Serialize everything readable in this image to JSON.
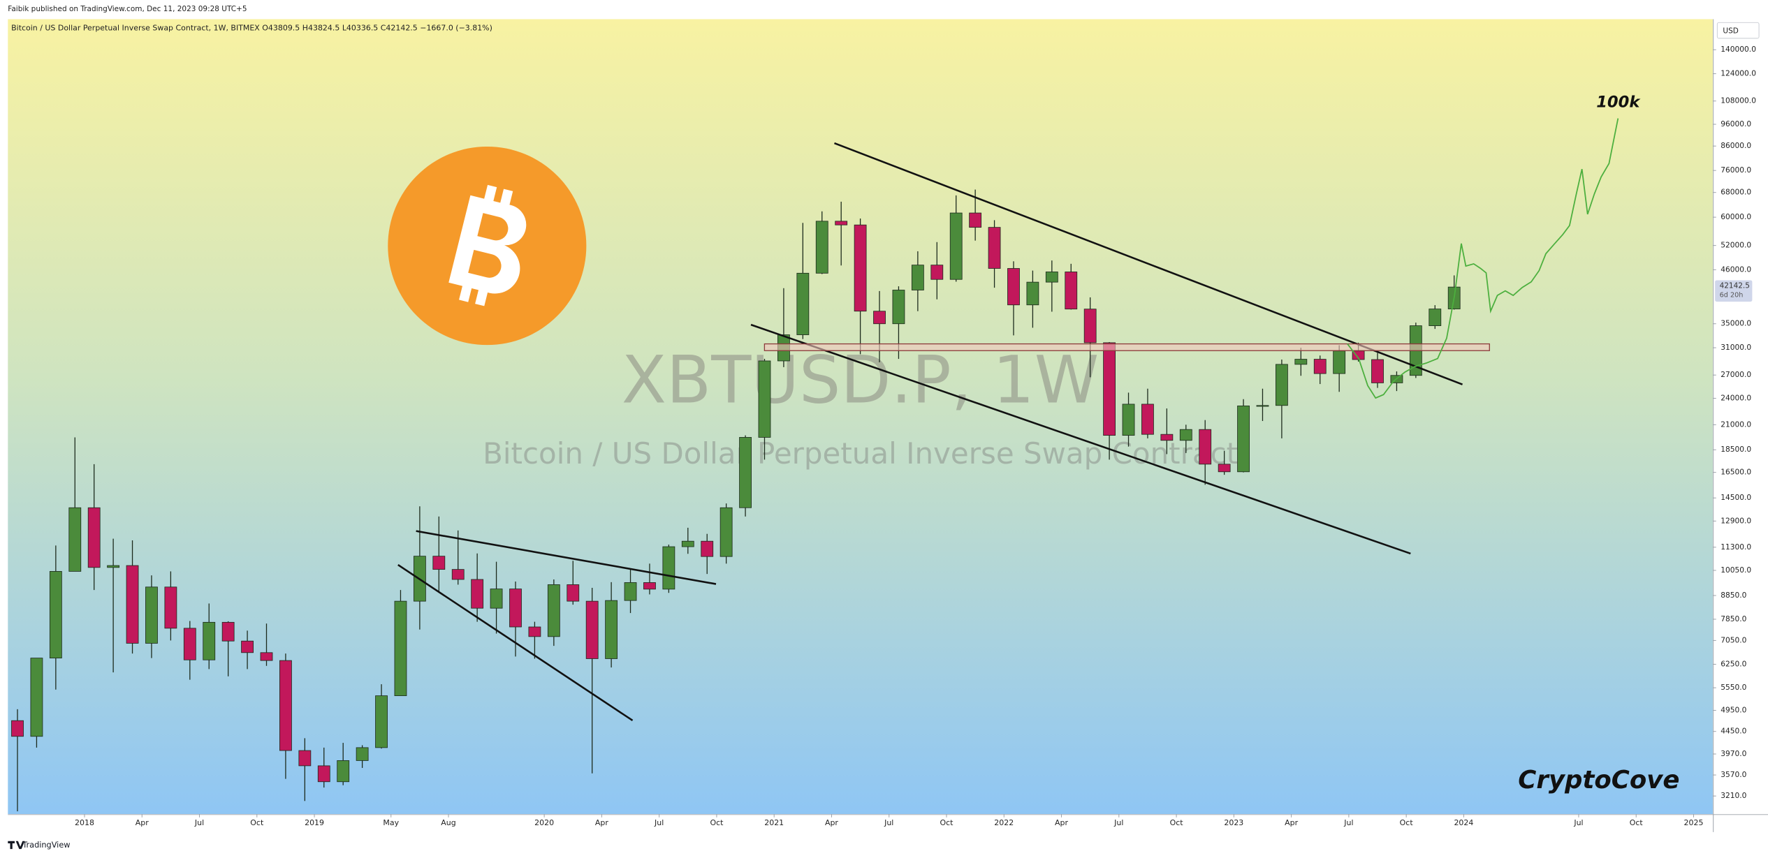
{
  "header": "Faibik published on TradingView.com, Dec 11, 2023 09:28 UTC+5",
  "footer": "TradingView",
  "chart_data": {
    "type": "candlestick",
    "legend_line": "Bitcoin / US Dollar Perpetual Inverse Swap Contract, 1W, BITMEX  O43809.5  H43824.5  L40336.5  C42142.5  −1667.0 (−3.81%)",
    "watermark_symbol": "XBTUSD.P, 1W",
    "watermark_description": "Bitcoin / US Dollar Perpetual Inverse Swap Contract",
    "annotations": [
      "100k",
      "CryptoCove"
    ],
    "currency": "USD",
    "log_scale": true,
    "grid": false,
    "up_color": "#4b8b3b",
    "down_color": "#c2185b",
    "x": [
      "2017-09",
      "2017-10",
      "2017-11",
      "2017-12",
      "2018-01",
      "2018-02",
      "2018-03",
      "2018-04",
      "2018-05",
      "2018-06",
      "2018-07",
      "2018-08",
      "2018-09",
      "2018-10",
      "2018-11",
      "2018-12",
      "2019-01",
      "2019-02",
      "2019-03",
      "2019-04",
      "2019-05",
      "2019-06",
      "2019-07",
      "2019-08",
      "2019-09",
      "2019-10",
      "2019-11",
      "2019-12",
      "2020-01",
      "2020-02",
      "2020-03",
      "2020-04",
      "2020-05",
      "2020-06",
      "2020-07",
      "2020-08",
      "2020-09",
      "2020-10",
      "2020-11",
      "2020-12",
      "2021-01",
      "2021-02",
      "2021-03",
      "2021-04",
      "2021-05",
      "2021-06",
      "2021-07",
      "2021-08",
      "2021-09",
      "2021-10",
      "2021-11",
      "2021-12",
      "2022-01",
      "2022-02",
      "2022-03",
      "2022-04",
      "2022-05",
      "2022-06",
      "2022-07",
      "2022-08",
      "2022-09",
      "2022-10",
      "2022-11",
      "2022-12",
      "2023-01",
      "2023-02",
      "2023-03",
      "2023-04",
      "2023-05",
      "2023-06",
      "2023-07",
      "2023-08",
      "2023-09",
      "2023-10",
      "2023-11",
      "2023-12"
    ],
    "open": [
      4700,
      4340,
      6450,
      10000,
      13800,
      10200,
      10300,
      6950,
      9240,
      7500,
      6390,
      7730,
      7030,
      6630,
      6370,
      4040,
      3740,
      3450,
      3840,
      4100,
      5330,
      8600,
      10800,
      10100,
      9600,
      8300,
      9150,
      7550,
      7190,
      9350,
      8600,
      6430,
      8630,
      9450,
      9140,
      11330,
      11650,
      10780,
      13800,
      19700,
      29000,
      33100,
      45200,
      58800,
      57700,
      37300,
      35000,
      41500,
      47100,
      43800,
      61300,
      57000,
      46300,
      38500,
      43200,
      45500,
      37700,
      31800,
      19900,
      23300,
      20000,
      19400,
      20500,
      17200,
      16550,
      23100,
      23150,
      28500,
      29250,
      27200,
      30500,
      29200,
      25950,
      26950,
      34650,
      37720
    ],
    "high": [
      4980,
      6450,
      11400,
      19700,
      17200,
      11800,
      11700,
      9800,
      10000,
      7780,
      8500,
      7770,
      7410,
      7680,
      6600,
      4300,
      4100,
      4200,
      4150,
      5650,
      9100,
      13900,
      13200,
      12300,
      10950,
      10500,
      9500,
      7750,
      9600,
      10550,
      9200,
      9470,
      10100,
      10400,
      11450,
      12470,
      12090,
      14100,
      19900,
      29300,
      41900,
      58300,
      61800,
      64900,
      59600,
      41300,
      42300,
      50500,
      52900,
      67000,
      69000,
      59100,
      48000,
      45800,
      48200,
      47400,
      40000,
      31900,
      24700,
      25200,
      22800,
      21000,
      21500,
      18400,
      23900,
      25200,
      29200,
      31000,
      29800,
      31400,
      31800,
      30200,
      27500,
      35200,
      38450,
      44700
    ],
    "low": [
      2970,
      4100,
      5500,
      10900,
      9100,
      6000,
      6600,
      6450,
      7050,
      5780,
      6100,
      5880,
      6100,
      6200,
      3500,
      3130,
      3350,
      3390,
      3700,
      4080,
      5330,
      7450,
      9050,
      9350,
      7750,
      7300,
      6500,
      6430,
      6860,
      8450,
      3600,
      6150,
      8100,
      8900,
      8970,
      10930,
      9870,
      10400,
      13200,
      17600,
      28100,
      32400,
      45000,
      47000,
      30000,
      28800,
      29300,
      37300,
      39600,
      43300,
      53300,
      42000,
      33000,
      34300,
      37200,
      37600,
      26700,
      17600,
      18800,
      19600,
      18100,
      18200,
      15500,
      16300,
      16500,
      21400,
      19600,
      26900,
      25800,
      24800,
      28900,
      25300,
      24900,
      26600,
      34100,
      37600
    ],
    "close": [
      4340,
      6450,
      10000,
      13800,
      10200,
      10300,
      6950,
      9240,
      7500,
      6390,
      7730,
      7030,
      6630,
      6370,
      4040,
      3740,
      3450,
      3840,
      4100,
      5330,
      8600,
      10800,
      10100,
      9600,
      8300,
      9150,
      7550,
      7190,
      9350,
      8600,
      6430,
      8630,
      9450,
      9140,
      11330,
      11650,
      10780,
      13800,
      19700,
      29000,
      33100,
      45200,
      58800,
      57700,
      37300,
      35000,
      41500,
      47100,
      43800,
      61300,
      57000,
      46300,
      38500,
      43200,
      45500,
      37700,
      31800,
      19900,
      23300,
      20000,
      19400,
      20500,
      17200,
      16550,
      23100,
      23150,
      28500,
      29250,
      27200,
      30500,
      29200,
      25950,
      26950,
      34650,
      37720,
      42142.5
    ],
    "xlim": [
      "2017-09",
      "2025-02"
    ],
    "xticks": [
      {
        "value": "2018-01",
        "label": "2018"
      },
      {
        "value": "2018-04",
        "label": "Apr"
      },
      {
        "value": "2018-07",
        "label": "Jul"
      },
      {
        "value": "2018-10",
        "label": "Oct"
      },
      {
        "value": "2019-01",
        "label": "2019"
      },
      {
        "value": "2019-05",
        "label": "May"
      },
      {
        "value": "2019-08",
        "label": "Aug"
      },
      {
        "value": "2020-01",
        "label": "2020"
      },
      {
        "value": "2020-04",
        "label": "Apr"
      },
      {
        "value": "2020-07",
        "label": "Jul"
      },
      {
        "value": "2020-10",
        "label": "Oct"
      },
      {
        "value": "2021-01",
        "label": "2021"
      },
      {
        "value": "2021-04",
        "label": "Apr"
      },
      {
        "value": "2021-07",
        "label": "Jul"
      },
      {
        "value": "2021-10",
        "label": "Oct"
      },
      {
        "value": "2022-01",
        "label": "2022"
      },
      {
        "value": "2022-04",
        "label": "Apr"
      },
      {
        "value": "2022-07",
        "label": "Jul"
      },
      {
        "value": "2022-10",
        "label": "Oct"
      },
      {
        "value": "2023-01",
        "label": "2023"
      },
      {
        "value": "2023-04",
        "label": "Apr"
      },
      {
        "value": "2023-07",
        "label": "Jul"
      },
      {
        "value": "2023-10",
        "label": "Oct"
      },
      {
        "value": "2024-01",
        "label": "2024"
      },
      {
        "value": "2024-07",
        "label": "Jul"
      },
      {
        "value": "2024-10",
        "label": "Oct"
      },
      {
        "value": "2025-01",
        "label": "2025"
      }
    ],
    "ylim": [
      2930,
      163400
    ],
    "yticks": [
      {
        "value": 140000,
        "label": "140000.0"
      },
      {
        "value": 124000,
        "label": "124000.0"
      },
      {
        "value": 108000,
        "label": "108000.0"
      },
      {
        "value": 96000,
        "label": "96000.0"
      },
      {
        "value": 86000,
        "label": "86000.0"
      },
      {
        "value": 76000,
        "label": "76000.0"
      },
      {
        "value": 68000,
        "label": "68000.0"
      },
      {
        "value": 60000,
        "label": "60000.0"
      },
      {
        "value": 52000,
        "label": "52000.0"
      },
      {
        "value": 46000,
        "label": "46000.0"
      },
      {
        "value": 35000,
        "label": "35000.0"
      },
      {
        "value": 31000,
        "label": "31000.0"
      },
      {
        "value": 27000,
        "label": "27000.0"
      },
      {
        "value": 24000,
        "label": "24000.0"
      },
      {
        "value": 21000,
        "label": "21000.0"
      },
      {
        "value": 18500,
        "label": "18500.0"
      },
      {
        "value": 16500,
        "label": "16500.0"
      },
      {
        "value": 14500,
        "label": "14500.0"
      },
      {
        "value": 12900,
        "label": "12900.0"
      },
      {
        "value": 11300,
        "label": "11300.0"
      },
      {
        "value": 10050,
        "label": "10050.0"
      },
      {
        "value": 8850,
        "label": "8850.0"
      },
      {
        "value": 7850,
        "label": "7850.0"
      },
      {
        "value": 7050,
        "label": "7050.0"
      },
      {
        "value": 6250,
        "label": "6250.0"
      },
      {
        "value": 5550,
        "label": "5550.0"
      },
      {
        "value": 4950,
        "label": "4950.0"
      },
      {
        "value": 4450,
        "label": "4450.0"
      },
      {
        "value": 3970,
        "label": "3970.0"
      },
      {
        "value": 3570,
        "label": "3570.0"
      },
      {
        "value": 3210,
        "label": "3210.0"
      }
    ],
    "last_price": 42142.5,
    "countdown": "6d 20h"
  }
}
